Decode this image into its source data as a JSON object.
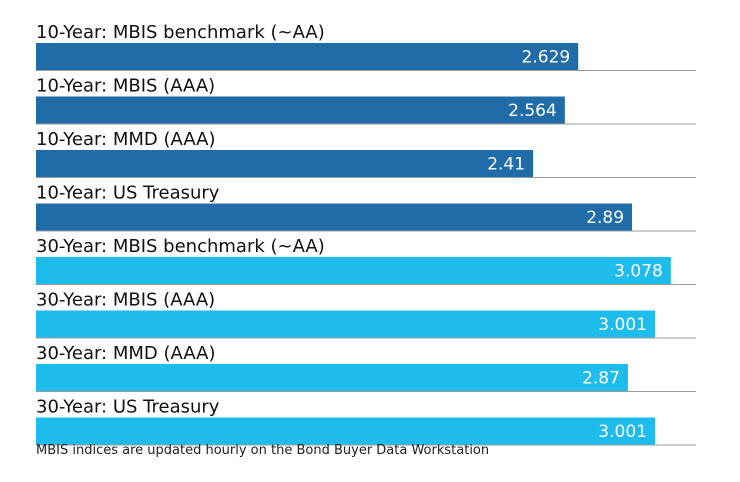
{
  "chart_data": {
    "type": "bar",
    "orientation": "horizontal",
    "categories": [
      "10-Year: MBIS benchmark (~AA)",
      "10-Year: MBIS (AAA)",
      "10-Year: MMD (AAA)",
      "10-Year: US Treasury",
      "30-Year: MBIS benchmark (~AA)",
      "30-Year: MBIS (AAA)",
      "30-Year: MMD (AAA)",
      "30-Year: US Treasury"
    ],
    "values": [
      2.629,
      2.564,
      2.41,
      2.89,
      3.078,
      3.001,
      2.87,
      3.001
    ],
    "value_labels": [
      "2.629",
      "2.564",
      "2.41",
      "2.89",
      "3.078",
      "3.001",
      "2.87",
      "3.001"
    ],
    "bar_colors": [
      "#1f6ca8",
      "#1f6ca8",
      "#1f6ca8",
      "#1f6ca8",
      "#1ebcec",
      "#1ebcec",
      "#1ebcec",
      "#1ebcec"
    ],
    "xlim": [
      0,
      3.2
    ],
    "title": "",
    "xlabel": "",
    "ylabel": "",
    "grid": false,
    "legend": "none"
  },
  "footnote": "MBIS indices are updated hourly on the Bond Buyer Data Workstation"
}
